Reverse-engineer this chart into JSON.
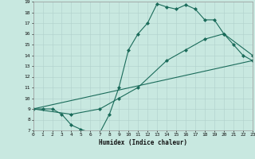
{
  "xlabel": "Humidex (Indice chaleur)",
  "xlim": [
    0,
    23
  ],
  "ylim": [
    7,
    19
  ],
  "xticks": [
    0,
    1,
    2,
    3,
    4,
    5,
    6,
    7,
    8,
    9,
    10,
    11,
    12,
    13,
    14,
    15,
    16,
    17,
    18,
    19,
    20,
    21,
    22,
    23
  ],
  "yticks": [
    7,
    8,
    9,
    10,
    11,
    12,
    13,
    14,
    15,
    16,
    17,
    18,
    19
  ],
  "bg_color": "#c8e8e0",
  "line_color": "#1a6b5a",
  "grid_color": "#b0d0cc",
  "line1_x": [
    0,
    1,
    2,
    3,
    4,
    5,
    6,
    7,
    8,
    9,
    10,
    11,
    12,
    13,
    14,
    15,
    16,
    17,
    18,
    19,
    20,
    21,
    22,
    23
  ],
  "line1_y": [
    9,
    9,
    9,
    8.5,
    7.5,
    7.1,
    6.8,
    6.8,
    8.5,
    11,
    14.5,
    16,
    17,
    18.8,
    18.5,
    18.3,
    18.7,
    18.3,
    17.3,
    17.3,
    16,
    15,
    14,
    13.5
  ],
  "line2_x": [
    0,
    23
  ],
  "line2_y": [
    9,
    13.5
  ],
  "line3_x": [
    0,
    4,
    7,
    9,
    11,
    14,
    16,
    18,
    20,
    23
  ],
  "line3_y": [
    9,
    8.5,
    9,
    10,
    11,
    13.5,
    14.5,
    15.5,
    16,
    14
  ]
}
